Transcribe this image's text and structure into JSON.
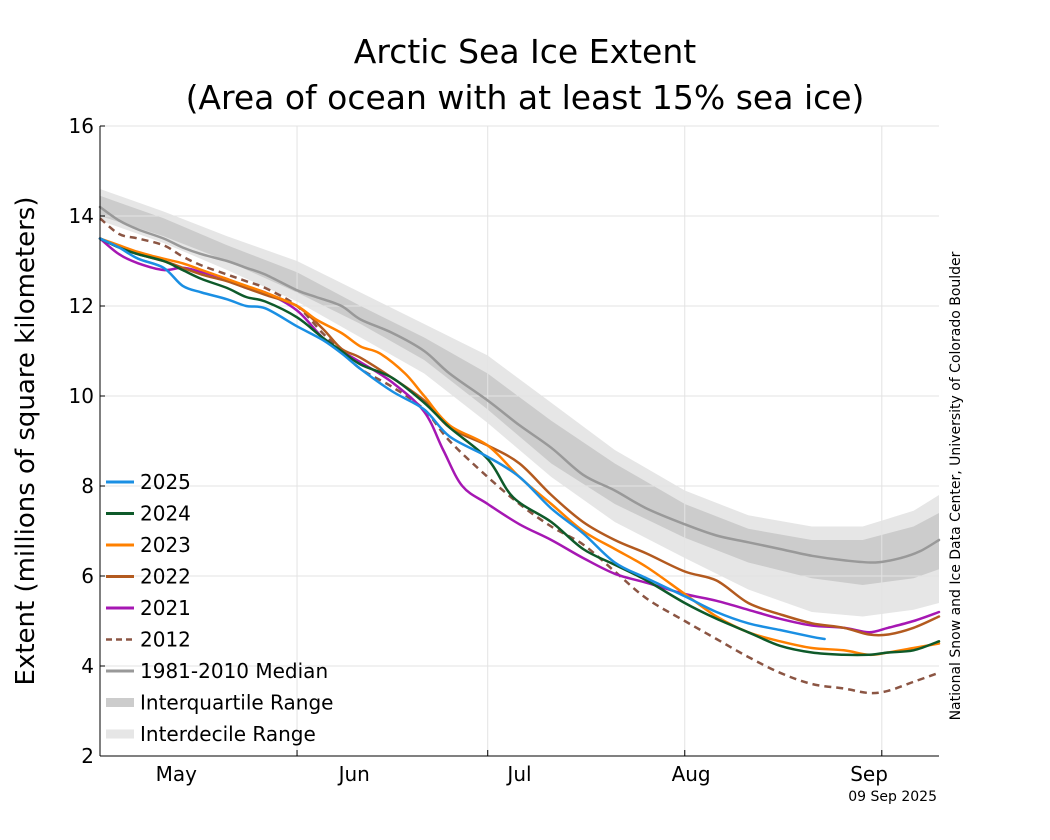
{
  "chart_data": {
    "type": "line",
    "title": "Arctic Sea Ice Extent",
    "subtitle": "(Area of ocean with at least 15% sea ice)",
    "ylabel": "Extent (millions of square kilometers)",
    "credit": "National Snow and Ice Data Center, University of Colorado Boulder",
    "date_stamp": "09 Sep 2025",
    "x_unit": "day of year",
    "xlim": [
      121,
      253
    ],
    "ylim": [
      2,
      16
    ],
    "y_ticks": [
      2,
      4,
      6,
      8,
      10,
      12,
      14,
      16
    ],
    "month_boundaries": [
      152,
      182,
      213,
      244
    ],
    "month_labels": [
      {
        "label": "May",
        "day": 133
      },
      {
        "label": "Jun",
        "day": 161
      },
      {
        "label": "Jul",
        "day": 187
      },
      {
        "label": "Aug",
        "day": 214
      },
      {
        "label": "Sep",
        "day": 242
      }
    ],
    "grid": true,
    "legend_position": "bottom-left",
    "legend": [
      {
        "name": "2025",
        "kind": "line",
        "color": "#1a8fe3"
      },
      {
        "name": "2024",
        "kind": "line",
        "color": "#0e5a2a"
      },
      {
        "name": "2023",
        "kind": "line",
        "color": "#ff8000"
      },
      {
        "name": "2022",
        "kind": "line",
        "color": "#b35a1f"
      },
      {
        "name": "2021",
        "kind": "line",
        "color": "#a617b3"
      },
      {
        "name": "2012",
        "kind": "dashed",
        "color": "#8b5543"
      },
      {
        "name": "1981-2010 Median",
        "kind": "line",
        "color": "#999999"
      },
      {
        "name": "Interquartile Range",
        "kind": "band",
        "color": "#cccccc"
      },
      {
        "name": "Interdecile Range",
        "kind": "band",
        "color": "#e6e6e6"
      }
    ],
    "interdecile": {
      "color": "#e6e6e6",
      "x": [
        121,
        131,
        141,
        152,
        162,
        172,
        182,
        192,
        202,
        213,
        223,
        233,
        241,
        249,
        253
      ],
      "low": [
        13.9,
        13.4,
        12.8,
        12.1,
        11.3,
        10.5,
        9.4,
        8.2,
        7.2,
        6.4,
        5.7,
        5.2,
        5.1,
        5.25,
        5.4
      ],
      "high": [
        14.6,
        14.1,
        13.55,
        13.0,
        12.3,
        11.6,
        10.9,
        9.85,
        8.8,
        7.9,
        7.35,
        7.1,
        7.1,
        7.45,
        7.8
      ]
    },
    "interquartile": {
      "color": "#cccccc",
      "x": [
        121,
        131,
        141,
        152,
        162,
        172,
        182,
        192,
        202,
        213,
        223,
        233,
        241,
        249,
        253
      ],
      "low": [
        14.0,
        13.55,
        13.0,
        12.3,
        11.6,
        10.8,
        9.7,
        8.5,
        7.6,
        6.85,
        6.3,
        5.95,
        5.8,
        5.95,
        6.15
      ],
      "high": [
        14.45,
        13.95,
        13.35,
        12.75,
        12.0,
        11.3,
        10.5,
        9.45,
        8.5,
        7.6,
        7.05,
        6.8,
        6.8,
        7.1,
        7.4
      ]
    },
    "series": [
      {
        "name": "1981-2010 Median",
        "color": "#999999",
        "width": 2.5,
        "dashed": false,
        "x": [
          121,
          124,
          127,
          131,
          134,
          137,
          141,
          144,
          147,
          152,
          155,
          159,
          162,
          167,
          172,
          176,
          182,
          187,
          192,
          197,
          202,
          207,
          213,
          218,
          223,
          228,
          233,
          238,
          243,
          247,
          250,
          253
        ],
        "y": [
          14.2,
          13.9,
          13.7,
          13.5,
          13.3,
          13.15,
          13.0,
          12.85,
          12.7,
          12.35,
          12.2,
          12.0,
          11.7,
          11.4,
          11.0,
          10.5,
          9.9,
          9.35,
          8.85,
          8.25,
          7.9,
          7.5,
          7.15,
          6.9,
          6.75,
          6.6,
          6.45,
          6.35,
          6.3,
          6.4,
          6.55,
          6.8
        ]
      },
      {
        "name": "2012",
        "color": "#8b5543",
        "width": 2.5,
        "dashed": true,
        "x": [
          121,
          124,
          127,
          131,
          134,
          137,
          141,
          144,
          147,
          152,
          156,
          159,
          162,
          167,
          172,
          176,
          182,
          187,
          192,
          197,
          202,
          207,
          213,
          218,
          223,
          228,
          233,
          238,
          242,
          245,
          249,
          253
        ],
        "y": [
          13.95,
          13.6,
          13.5,
          13.35,
          13.1,
          12.9,
          12.7,
          12.55,
          12.4,
          12.0,
          11.4,
          11.0,
          10.6,
          10.2,
          9.7,
          9.0,
          8.2,
          7.6,
          7.1,
          6.7,
          6.1,
          5.5,
          5.0,
          4.6,
          4.2,
          3.85,
          3.6,
          3.5,
          3.4,
          3.45,
          3.65,
          3.85
        ]
      },
      {
        "name": "2021",
        "color": "#a617b3",
        "width": 2.5,
        "dashed": false,
        "x": [
          121,
          124,
          127,
          131,
          134,
          137,
          141,
          144,
          147,
          152,
          156,
          159,
          162,
          167,
          172,
          175,
          178,
          182,
          187,
          192,
          197,
          202,
          207,
          213,
          218,
          223,
          228,
          233,
          238,
          242,
          245,
          249,
          253
        ],
        "y": [
          13.5,
          13.15,
          12.95,
          12.8,
          12.85,
          12.75,
          12.6,
          12.4,
          12.3,
          11.9,
          11.3,
          11.0,
          10.75,
          10.3,
          9.65,
          8.8,
          8.0,
          7.6,
          7.15,
          6.8,
          6.4,
          6.05,
          5.85,
          5.6,
          5.45,
          5.25,
          5.05,
          4.9,
          4.85,
          4.75,
          4.85,
          5.0,
          5.2
        ]
      },
      {
        "name": "2022",
        "color": "#b35a1f",
        "width": 2.5,
        "dashed": false,
        "x": [
          121,
          124,
          127,
          131,
          134,
          137,
          141,
          144,
          147,
          152,
          156,
          159,
          162,
          167,
          172,
          176,
          182,
          187,
          192,
          197,
          202,
          207,
          213,
          218,
          223,
          228,
          233,
          238,
          242,
          245,
          249,
          253
        ],
        "y": [
          13.5,
          13.3,
          13.15,
          13.0,
          12.85,
          12.7,
          12.55,
          12.4,
          12.25,
          12.0,
          11.5,
          11.05,
          10.85,
          10.4,
          9.9,
          9.3,
          8.9,
          8.5,
          7.8,
          7.2,
          6.8,
          6.5,
          6.1,
          5.9,
          5.4,
          5.15,
          4.95,
          4.85,
          4.7,
          4.7,
          4.85,
          5.1
        ]
      },
      {
        "name": "2023",
        "color": "#ff8000",
        "width": 2.5,
        "dashed": false,
        "x": [
          121,
          124,
          127,
          131,
          134,
          137,
          141,
          144,
          147,
          152,
          155,
          159,
          162,
          165,
          169,
          172,
          176,
          182,
          187,
          192,
          197,
          202,
          207,
          213,
          218,
          223,
          228,
          233,
          238,
          242,
          245,
          249,
          253
        ],
        "y": [
          13.5,
          13.35,
          13.2,
          13.05,
          12.95,
          12.8,
          12.6,
          12.45,
          12.3,
          12.0,
          11.7,
          11.4,
          11.1,
          10.95,
          10.5,
          10.0,
          9.35,
          8.9,
          8.2,
          7.6,
          7.0,
          6.6,
          6.2,
          5.6,
          5.1,
          4.75,
          4.55,
          4.4,
          4.35,
          4.25,
          4.3,
          4.4,
          4.5
        ]
      },
      {
        "name": "2024",
        "color": "#0e5a2a",
        "width": 2.5,
        "dashed": false,
        "x": [
          121,
          124,
          127,
          131,
          134,
          137,
          141,
          144,
          147,
          152,
          156,
          159,
          162,
          167,
          172,
          176,
          182,
          186,
          192,
          197,
          202,
          207,
          213,
          218,
          223,
          228,
          233,
          238,
          242,
          245,
          249,
          253
        ],
        "y": [
          13.5,
          13.3,
          13.15,
          13.0,
          12.8,
          12.6,
          12.4,
          12.2,
          12.1,
          11.75,
          11.3,
          11.0,
          10.7,
          10.4,
          9.85,
          9.3,
          8.6,
          7.75,
          7.2,
          6.6,
          6.25,
          5.9,
          5.4,
          5.05,
          4.75,
          4.45,
          4.3,
          4.25,
          4.25,
          4.3,
          4.35,
          4.55
        ]
      },
      {
        "name": "2025",
        "color": "#1a8fe3",
        "width": 2.5,
        "dashed": false,
        "x": [
          121,
          124,
          127,
          131,
          134,
          137,
          141,
          144,
          147,
          152,
          156,
          159,
          162,
          167,
          172,
          176,
          182,
          187,
          192,
          197,
          202,
          207,
          213,
          218,
          223,
          228,
          233,
          235
        ],
        "y": [
          13.5,
          13.3,
          13.05,
          12.85,
          12.45,
          12.3,
          12.15,
          12.0,
          11.95,
          11.55,
          11.25,
          10.95,
          10.6,
          10.1,
          9.7,
          9.1,
          8.65,
          8.2,
          7.5,
          6.95,
          6.3,
          5.95,
          5.55,
          5.2,
          4.95,
          4.8,
          4.65,
          4.6
        ]
      }
    ]
  }
}
